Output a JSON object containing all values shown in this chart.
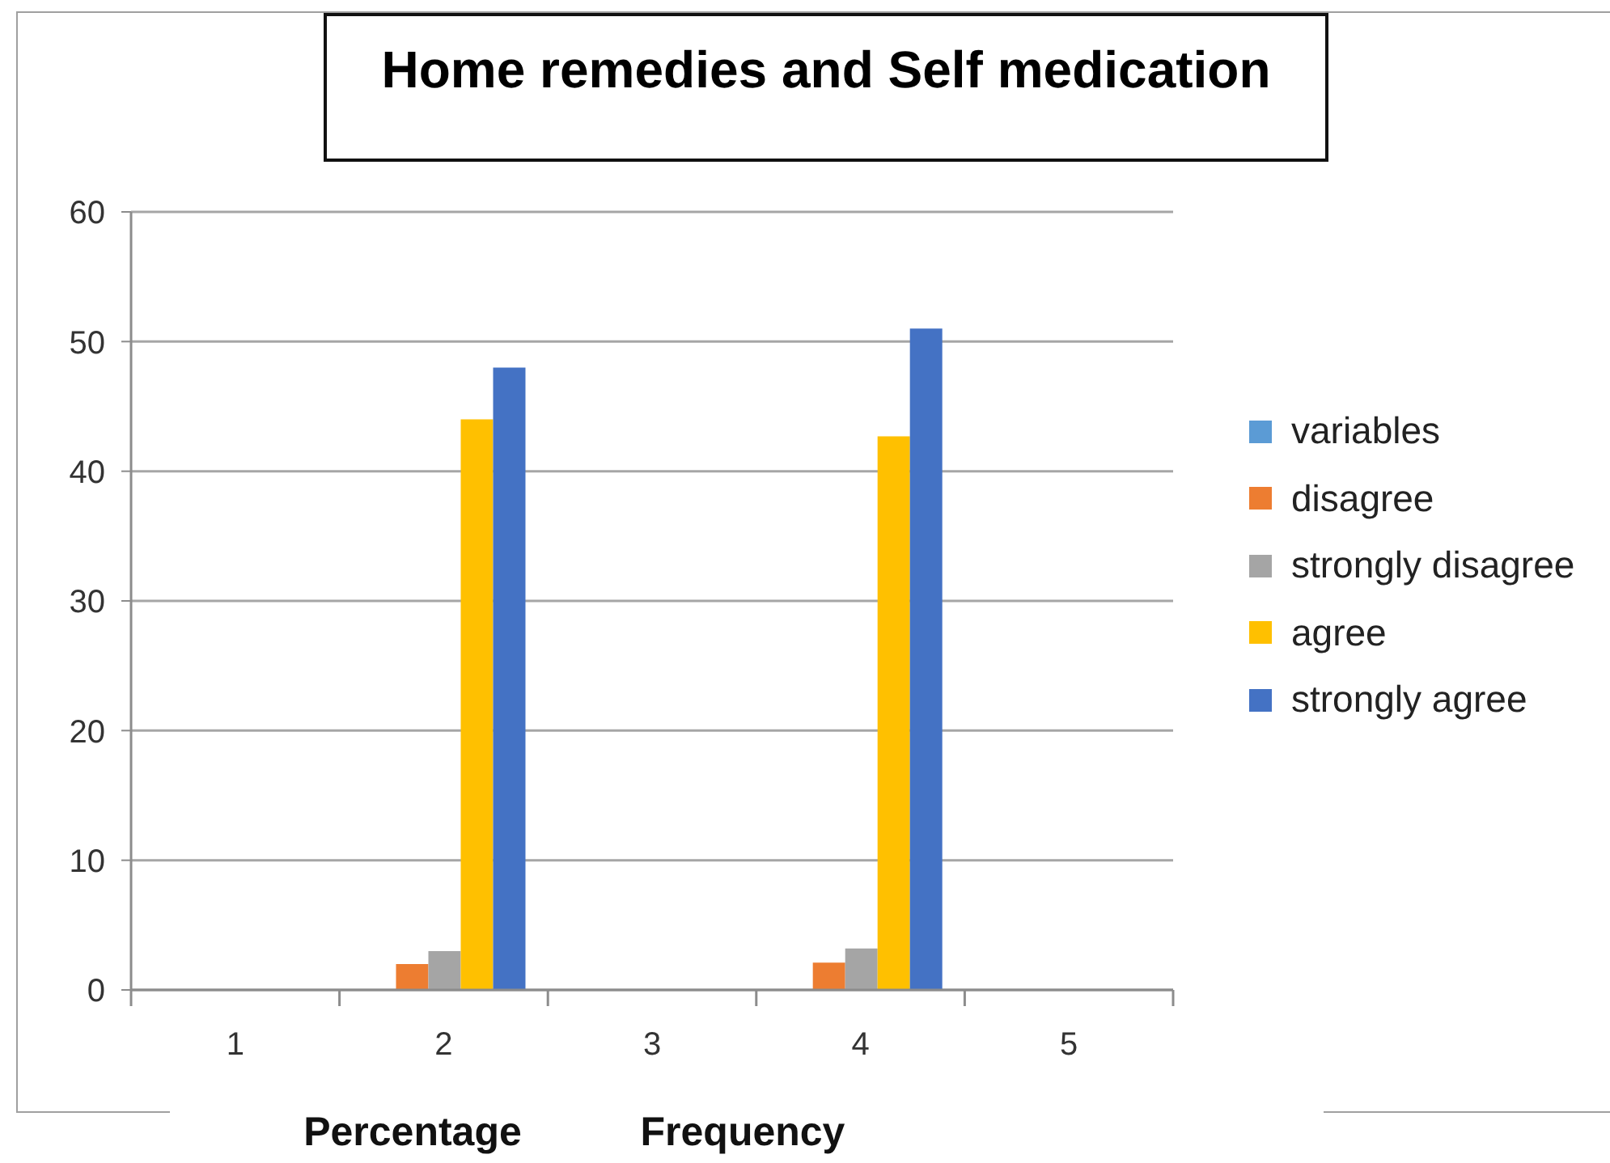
{
  "chart_data": {
    "type": "bar",
    "title": "Home remedies and Self medication",
    "categories": [
      "1",
      "2",
      "3",
      "4",
      "5"
    ],
    "series": [
      {
        "name": "variables",
        "color": "#5b9bd5",
        "values": [
          null,
          null,
          null,
          null,
          null
        ]
      },
      {
        "name": "disagree",
        "color": "#ed7d31",
        "values": [
          null,
          2,
          null,
          2.1,
          null
        ]
      },
      {
        "name": "strongly disagree",
        "color": "#a5a5a5",
        "values": [
          null,
          3,
          null,
          3.2,
          null
        ]
      },
      {
        "name": "agree",
        "color": "#ffc000",
        "values": [
          null,
          44,
          null,
          42.7,
          null
        ]
      },
      {
        "name": "strongly agree",
        "color": "#4472c4",
        "values": [
          null,
          48,
          null,
          51,
          null
        ]
      }
    ],
    "ylim": [
      0,
      60
    ],
    "yticks": [
      0,
      10,
      20,
      30,
      40,
      50,
      60
    ],
    "grid": "y",
    "legend": "right",
    "annotations": [
      "Percentage",
      "Frequency"
    ]
  }
}
